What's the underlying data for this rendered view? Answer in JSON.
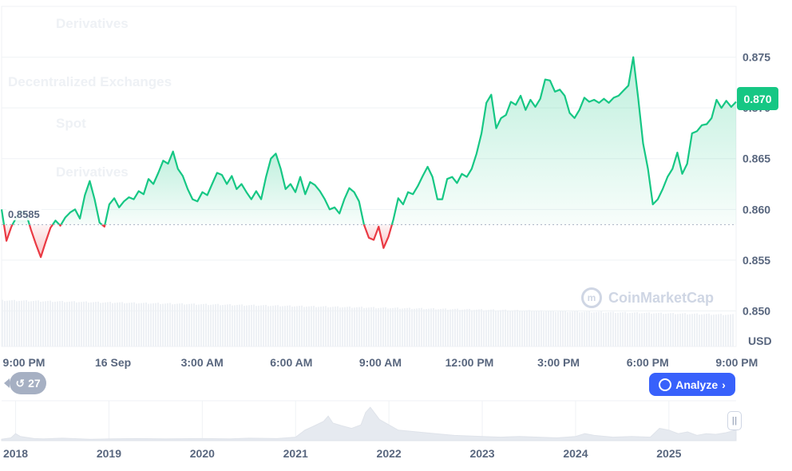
{
  "ghost_menu": [
    "Derivatives",
    "Decentralized Exchanges",
    "Spot",
    "Derivatives"
  ],
  "watermark": "CoinMarketCap",
  "analyze_label": "Analyze",
  "history_count": "27",
  "current_price_label": "0.870",
  "reference_label": "0.8585",
  "currency": "USD",
  "icons": {
    "analyze": "analyze-icon",
    "chevron": "chevron-right-icon",
    "history": "history-icon",
    "logo": "coinmarketcap-logo-icon",
    "handle": "range-handle-icon"
  },
  "colors": {
    "up": "#16c784",
    "down": "#ea3943",
    "badge": "#16c784",
    "analyze": "#3861fb",
    "history": "#a6b0c3"
  },
  "chart_data": [
    {
      "type": "line",
      "y_ticks": [
        "0.875",
        "0.870",
        "0.865",
        "0.860",
        "0.855",
        "0.850"
      ],
      "y_tick_values": [
        0.875,
        0.87,
        0.865,
        0.86,
        0.855,
        0.85
      ],
      "ylim": [
        0.8465,
        0.88
      ],
      "x_ticks": [
        "9:00 PM",
        "16 Sep",
        "3:00 AM",
        "6:00 AM",
        "9:00 AM",
        "12:00 PM",
        "3:00 PM",
        "6:00 PM",
        "9:00 PM"
      ],
      "x_tick_hours": [
        0,
        3,
        6,
        9,
        12,
        15,
        18,
        21,
        24
      ],
      "baseline": 0.8585,
      "current": 0.87,
      "series": [
        {
          "values": [
            0.86,
            0.8569,
            0.8583,
            0.8592,
            0.8598,
            0.8596,
            0.858,
            0.8566,
            0.8553,
            0.8568,
            0.8582,
            0.8589,
            0.8584,
            0.8592,
            0.8597,
            0.86,
            0.8591,
            0.8614,
            0.8628,
            0.861,
            0.8587,
            0.8583,
            0.8605,
            0.8611,
            0.8602,
            0.8608,
            0.8612,
            0.861,
            0.8618,
            0.8615,
            0.863,
            0.8625,
            0.8636,
            0.8648,
            0.8645,
            0.8657,
            0.864,
            0.8633,
            0.862,
            0.861,
            0.8608,
            0.8617,
            0.8614,
            0.8625,
            0.8636,
            0.8634,
            0.8625,
            0.8633,
            0.862,
            0.8625,
            0.8617,
            0.861,
            0.8618,
            0.861,
            0.8632,
            0.865,
            0.8655,
            0.864,
            0.862,
            0.8625,
            0.8617,
            0.8632,
            0.8615,
            0.8627,
            0.8624,
            0.8618,
            0.861,
            0.86,
            0.8602,
            0.8596,
            0.861,
            0.8621,
            0.8617,
            0.8608,
            0.8585,
            0.8572,
            0.857,
            0.8583,
            0.8562,
            0.8573,
            0.859,
            0.8611,
            0.8605,
            0.8617,
            0.8615,
            0.8623,
            0.8633,
            0.8642,
            0.8632,
            0.861,
            0.861,
            0.863,
            0.8632,
            0.8626,
            0.8635,
            0.8632,
            0.864,
            0.8655,
            0.8675,
            0.8705,
            0.8713,
            0.868,
            0.869,
            0.8693,
            0.8706,
            0.8703,
            0.8712,
            0.8698,
            0.8708,
            0.8701,
            0.8709,
            0.8728,
            0.8727,
            0.8716,
            0.8718,
            0.8712,
            0.8695,
            0.869,
            0.8698,
            0.871,
            0.8706,
            0.8708,
            0.8705,
            0.8709,
            0.8705,
            0.871,
            0.8712,
            0.8717,
            0.8722,
            0.875,
            0.871,
            0.8665,
            0.864,
            0.8605,
            0.861,
            0.862,
            0.8632,
            0.864,
            0.8656,
            0.8635,
            0.8645,
            0.8675,
            0.8677,
            0.8683,
            0.8684,
            0.869,
            0.8708,
            0.87,
            0.8707,
            0.8701,
            0.8706
          ]
        }
      ]
    },
    {
      "type": "area",
      "x_ticks": [
        "2018",
        "2019",
        "2020",
        "2021",
        "2022",
        "2023",
        "2024",
        "2025"
      ],
      "x_tick_years": [
        2018,
        2019,
        2020,
        2021,
        2022,
        2023,
        2024,
        2025
      ],
      "xlim": [
        2017.85,
        2025.72
      ],
      "ylim": [
        0,
        1
      ],
      "series": [
        {
          "x": [
            2017.85,
            2017.95,
            2018.0,
            2018.05,
            2018.1,
            2018.2,
            2018.3,
            2018.5,
            2018.8,
            2019.0,
            2019.3,
            2019.6,
            2020.0,
            2020.3,
            2020.5,
            2020.8,
            2021.0,
            2021.1,
            2021.2,
            2021.3,
            2021.35,
            2021.4,
            2021.5,
            2021.6,
            2021.7,
            2021.75,
            2021.8,
            2021.9,
            2022.0,
            2022.1,
            2022.3,
            2022.5,
            2022.7,
            2023.0,
            2023.2,
            2023.4,
            2023.6,
            2023.8,
            2024.0,
            2024.1,
            2024.2,
            2024.4,
            2024.6,
            2024.8,
            2024.9,
            2025.0,
            2025.1,
            2025.2,
            2025.3,
            2025.4,
            2025.5,
            2025.6,
            2025.72
          ],
          "values": [
            0.04,
            0.08,
            0.2,
            0.12,
            0.1,
            0.06,
            0.05,
            0.07,
            0.04,
            0.05,
            0.06,
            0.05,
            0.06,
            0.05,
            0.07,
            0.06,
            0.1,
            0.3,
            0.42,
            0.55,
            0.7,
            0.5,
            0.42,
            0.35,
            0.45,
            0.8,
            0.95,
            0.6,
            0.45,
            0.3,
            0.25,
            0.2,
            0.15,
            0.12,
            0.1,
            0.12,
            0.1,
            0.08,
            0.12,
            0.2,
            0.15,
            0.1,
            0.12,
            0.1,
            0.35,
            0.3,
            0.2,
            0.25,
            0.15,
            0.2,
            0.18,
            0.22,
            0.3
          ]
        }
      ]
    }
  ]
}
